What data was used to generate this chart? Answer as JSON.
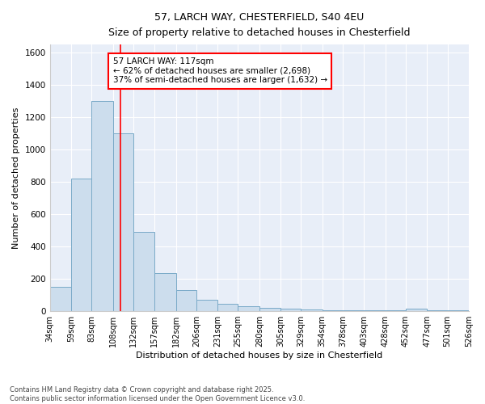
{
  "title": "57, LARCH WAY, CHESTERFIELD, S40 4EU",
  "subtitle": "Size of property relative to detached houses in Chesterfield",
  "xlabel": "Distribution of detached houses by size in Chesterfield",
  "ylabel": "Number of detached properties",
  "bar_color": "#ccdded",
  "bar_edge_color": "#7aaac8",
  "background_color": "#e8eef8",
  "grid_color": "#ffffff",
  "fig_bg_color": "#ffffff",
  "red_line_x": 117,
  "annotation_text": "57 LARCH WAY: 117sqm\n← 62% of detached houses are smaller (2,698)\n37% of semi-detached houses are larger (1,632) →",
  "footnote": "Contains HM Land Registry data © Crown copyright and database right 2025.\nContains public sector information licensed under the Open Government Licence v3.0.",
  "bin_edges": [
    34,
    59,
    83,
    108,
    132,
    157,
    182,
    206,
    231,
    255,
    280,
    305,
    329,
    354,
    378,
    403,
    428,
    452,
    477,
    501,
    526
  ],
  "bin_values": [
    150,
    820,
    1300,
    1100,
    490,
    235,
    130,
    70,
    45,
    30,
    20,
    15,
    10,
    5,
    3,
    3,
    3,
    15,
    3,
    3
  ],
  "ylim": [
    0,
    1650
  ],
  "yticks": [
    0,
    200,
    400,
    600,
    800,
    1000,
    1200,
    1400,
    1600
  ]
}
